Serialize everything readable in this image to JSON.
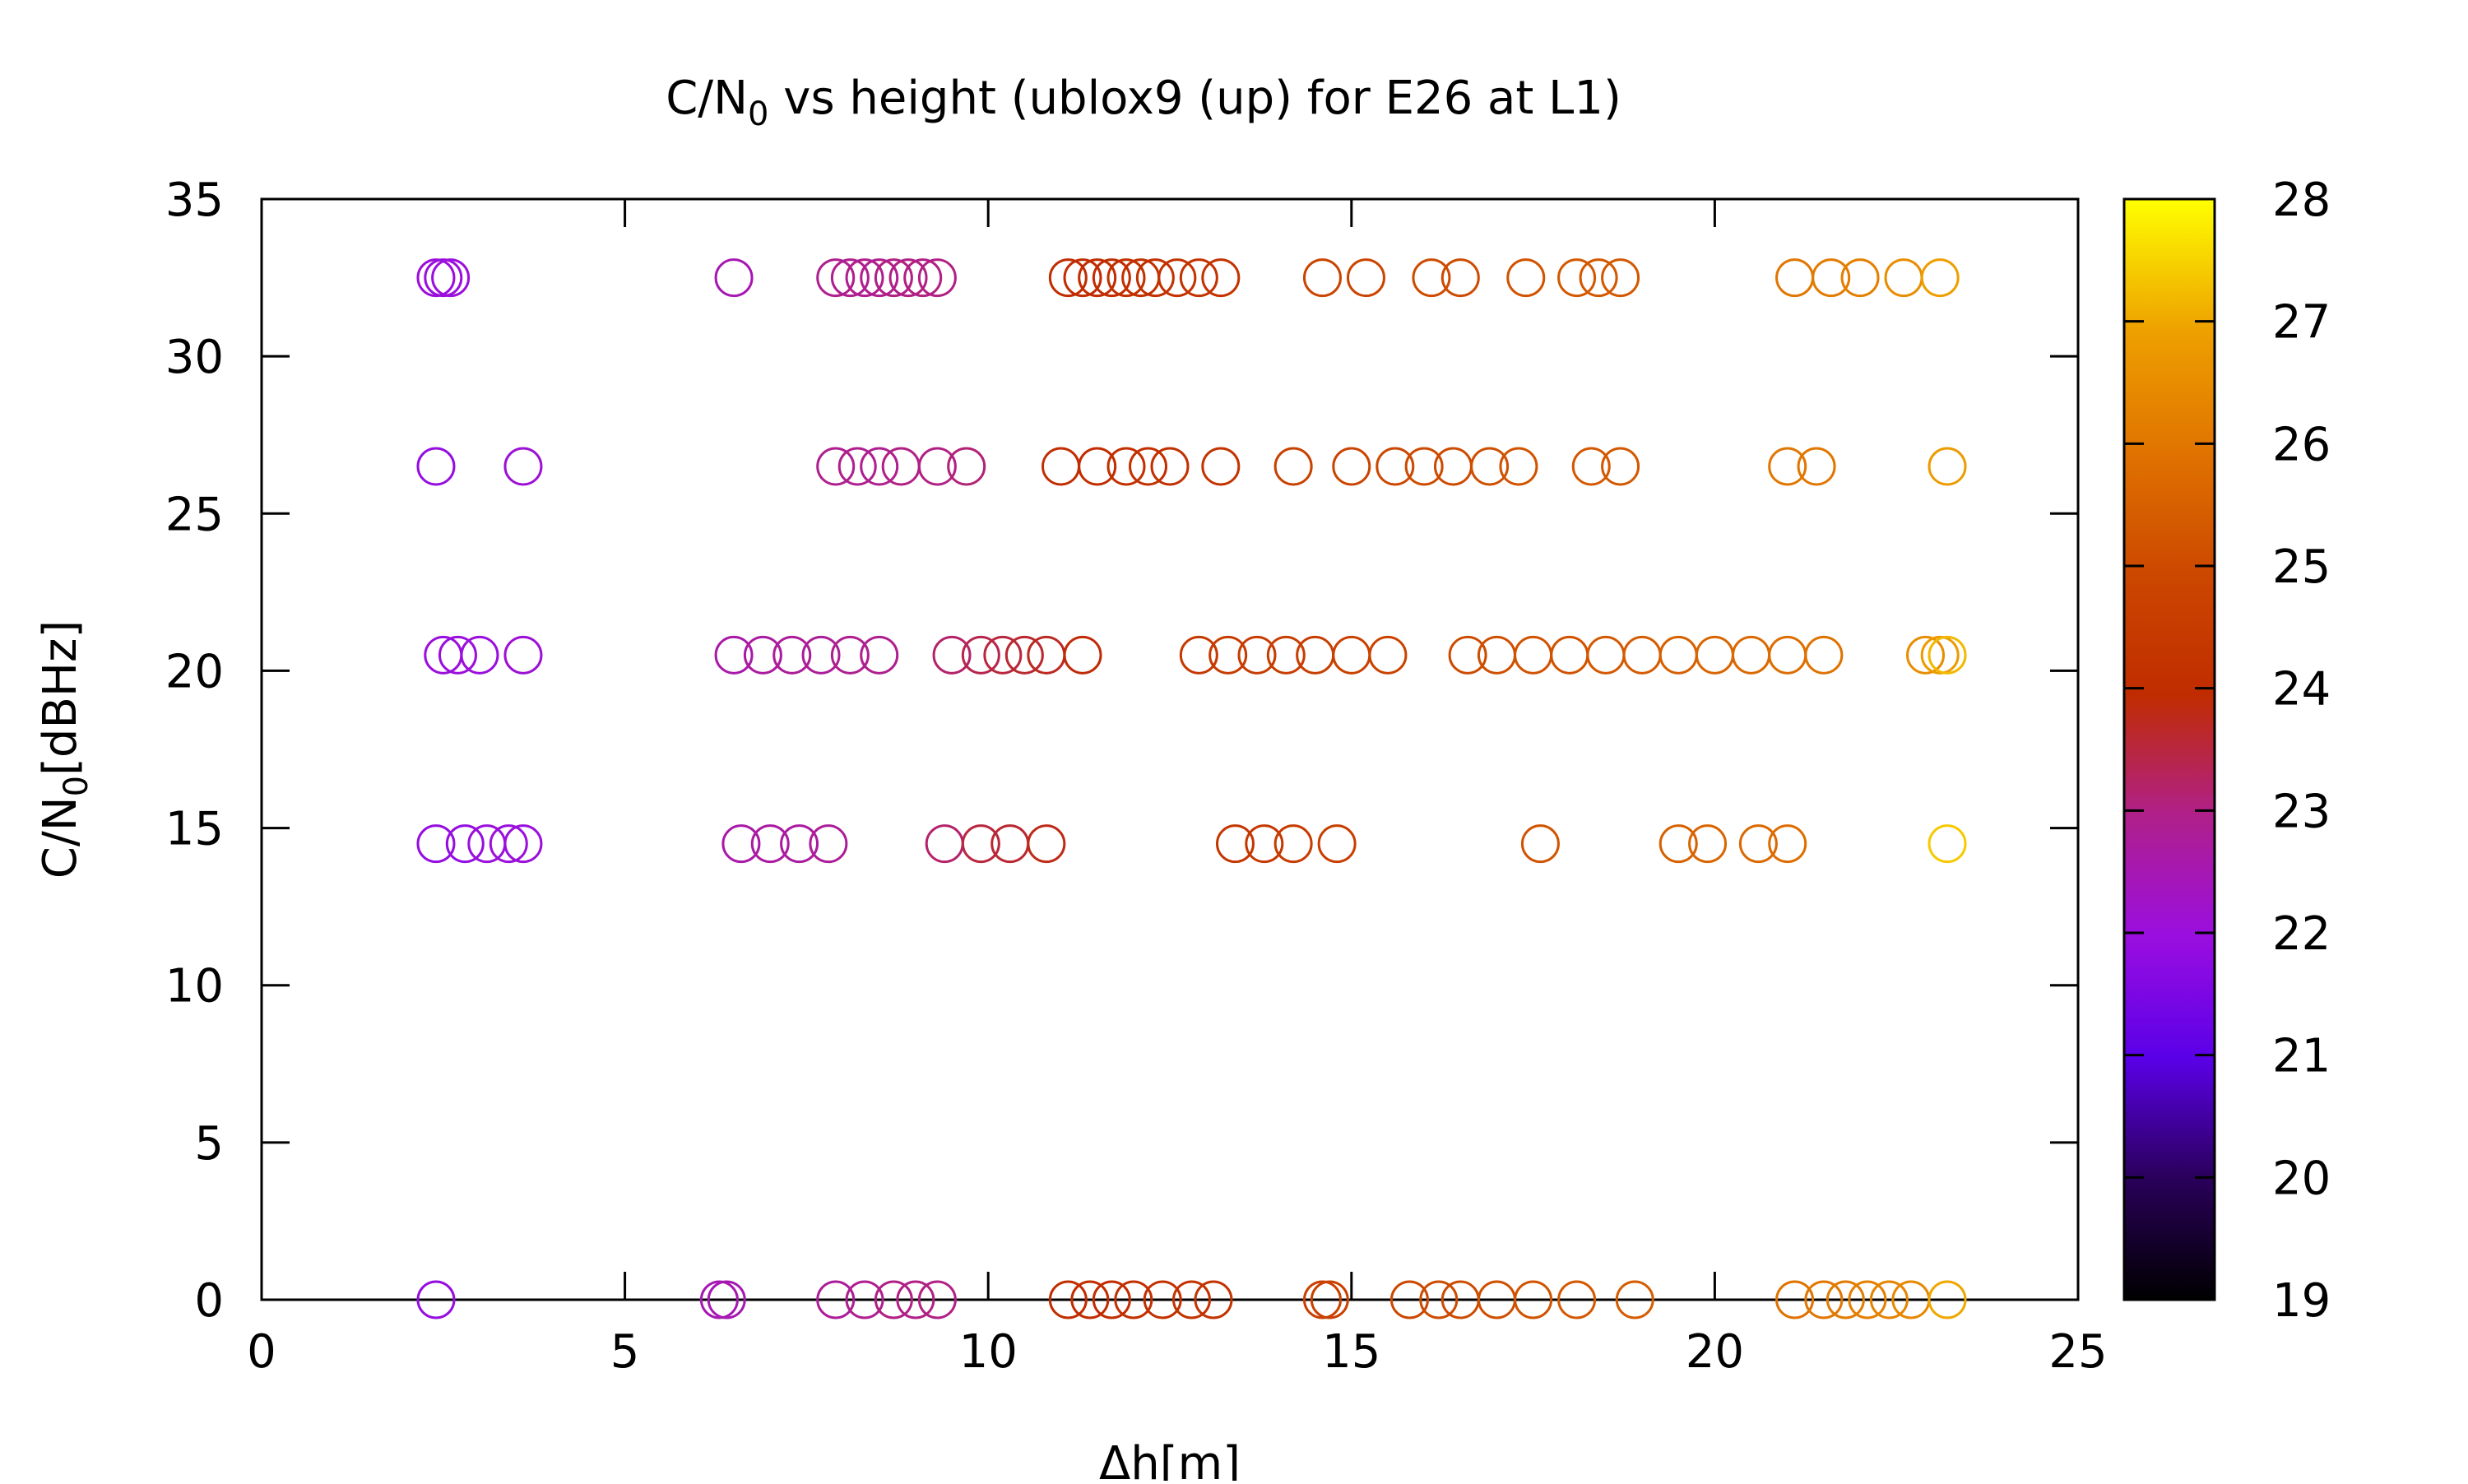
{
  "chart_data": {
    "type": "scatter",
    "title_main": "C/N",
    "title_sub": "0",
    "title_rest": " vs height (ublox9 (up) for E26 at L1)",
    "xlabel": "Δh[m]",
    "ylabel_main": "C/N",
    "ylabel_sub": "0",
    "ylabel_rest": "[dBHz]",
    "xlim": [
      0,
      25
    ],
    "ylim": [
      0,
      35
    ],
    "xticks": [
      "0",
      "5",
      "10",
      "15",
      "20",
      "25"
    ],
    "yticks": [
      "0",
      "5",
      "10",
      "15",
      "20",
      "25",
      "30",
      "35"
    ],
    "colorbar": {
      "range": [
        19,
        28
      ],
      "ticks": [
        "19",
        "20",
        "21",
        "22",
        "23",
        "24",
        "25",
        "26",
        "27",
        "28"
      ]
    },
    "grid": false,
    "marker": "open-circle",
    "points": [
      {
        "x": 2.4,
        "y": 32.5,
        "c": 22.0
      },
      {
        "x": 2.5,
        "y": 32.5,
        "c": 22.0
      },
      {
        "x": 2.6,
        "y": 32.5,
        "c": 22.0
      },
      {
        "x": 6.5,
        "y": 32.5,
        "c": 22.5
      },
      {
        "x": 7.9,
        "y": 32.5,
        "c": 22.9
      },
      {
        "x": 8.1,
        "y": 32.5,
        "c": 22.9
      },
      {
        "x": 8.3,
        "y": 32.5,
        "c": 22.9
      },
      {
        "x": 8.5,
        "y": 32.5,
        "c": 22.9
      },
      {
        "x": 8.7,
        "y": 32.5,
        "c": 23.0
      },
      {
        "x": 8.9,
        "y": 32.5,
        "c": 23.0
      },
      {
        "x": 9.1,
        "y": 32.5,
        "c": 23.0
      },
      {
        "x": 9.3,
        "y": 32.5,
        "c": 23.0
      },
      {
        "x": 11.1,
        "y": 32.5,
        "c": 24.0
      },
      {
        "x": 11.3,
        "y": 32.5,
        "c": 24.0
      },
      {
        "x": 11.5,
        "y": 32.5,
        "c": 24.0
      },
      {
        "x": 11.7,
        "y": 32.5,
        "c": 24.0
      },
      {
        "x": 11.9,
        "y": 32.5,
        "c": 24.1
      },
      {
        "x": 12.1,
        "y": 32.5,
        "c": 24.1
      },
      {
        "x": 12.3,
        "y": 32.5,
        "c": 24.1
      },
      {
        "x": 12.6,
        "y": 32.5,
        "c": 24.2
      },
      {
        "x": 12.9,
        "y": 32.5,
        "c": 24.2
      },
      {
        "x": 13.2,
        "y": 32.5,
        "c": 24.2
      },
      {
        "x": 14.6,
        "y": 32.5,
        "c": 24.8
      },
      {
        "x": 15.2,
        "y": 32.5,
        "c": 24.8
      },
      {
        "x": 16.1,
        "y": 32.5,
        "c": 25.0
      },
      {
        "x": 16.5,
        "y": 32.5,
        "c": 25.0
      },
      {
        "x": 17.4,
        "y": 32.5,
        "c": 25.2
      },
      {
        "x": 18.1,
        "y": 32.5,
        "c": 25.3
      },
      {
        "x": 18.4,
        "y": 32.5,
        "c": 25.3
      },
      {
        "x": 18.7,
        "y": 32.5,
        "c": 25.3
      },
      {
        "x": 21.1,
        "y": 32.5,
        "c": 26.0
      },
      {
        "x": 21.6,
        "y": 32.5,
        "c": 26.1
      },
      {
        "x": 22.0,
        "y": 32.5,
        "c": 26.2
      },
      {
        "x": 22.6,
        "y": 32.5,
        "c": 26.5
      },
      {
        "x": 23.1,
        "y": 32.5,
        "c": 26.9
      },
      {
        "x": 2.4,
        "y": 26.5,
        "c": 21.9
      },
      {
        "x": 3.6,
        "y": 26.5,
        "c": 22.1
      },
      {
        "x": 7.9,
        "y": 26.5,
        "c": 22.9
      },
      {
        "x": 8.2,
        "y": 26.5,
        "c": 22.9
      },
      {
        "x": 8.5,
        "y": 26.5,
        "c": 22.9
      },
      {
        "x": 8.8,
        "y": 26.5,
        "c": 23.0
      },
      {
        "x": 9.3,
        "y": 26.5,
        "c": 23.0
      },
      {
        "x": 9.7,
        "y": 26.5,
        "c": 23.1
      },
      {
        "x": 11.0,
        "y": 26.5,
        "c": 24.0
      },
      {
        "x": 11.5,
        "y": 26.5,
        "c": 24.0
      },
      {
        "x": 11.9,
        "y": 26.5,
        "c": 24.1
      },
      {
        "x": 12.2,
        "y": 26.5,
        "c": 24.1
      },
      {
        "x": 12.5,
        "y": 26.5,
        "c": 24.1
      },
      {
        "x": 13.2,
        "y": 26.5,
        "c": 24.2
      },
      {
        "x": 14.2,
        "y": 26.5,
        "c": 24.7
      },
      {
        "x": 15.0,
        "y": 26.5,
        "c": 24.8
      },
      {
        "x": 15.6,
        "y": 26.5,
        "c": 24.9
      },
      {
        "x": 16.0,
        "y": 26.5,
        "c": 25.0
      },
      {
        "x": 16.4,
        "y": 26.5,
        "c": 25.0
      },
      {
        "x": 16.9,
        "y": 26.5,
        "c": 25.1
      },
      {
        "x": 17.3,
        "y": 26.5,
        "c": 25.2
      },
      {
        "x": 18.3,
        "y": 26.5,
        "c": 25.3
      },
      {
        "x": 18.7,
        "y": 26.5,
        "c": 25.3
      },
      {
        "x": 21.0,
        "y": 26.5,
        "c": 26.0
      },
      {
        "x": 21.4,
        "y": 26.5,
        "c": 26.0
      },
      {
        "x": 23.2,
        "y": 26.5,
        "c": 26.8
      },
      {
        "x": 2.5,
        "y": 20.5,
        "c": 22.0
      },
      {
        "x": 2.7,
        "y": 20.5,
        "c": 22.0
      },
      {
        "x": 3.0,
        "y": 20.5,
        "c": 22.0
      },
      {
        "x": 3.6,
        "y": 20.5,
        "c": 22.1
      },
      {
        "x": 6.5,
        "y": 20.5,
        "c": 22.6
      },
      {
        "x": 6.9,
        "y": 20.5,
        "c": 22.7
      },
      {
        "x": 7.3,
        "y": 20.5,
        "c": 22.8
      },
      {
        "x": 7.7,
        "y": 20.5,
        "c": 22.8
      },
      {
        "x": 8.1,
        "y": 20.5,
        "c": 22.9
      },
      {
        "x": 8.5,
        "y": 20.5,
        "c": 22.9
      },
      {
        "x": 9.5,
        "y": 20.5,
        "c": 23.2
      },
      {
        "x": 9.9,
        "y": 20.5,
        "c": 23.4
      },
      {
        "x": 10.2,
        "y": 20.5,
        "c": 23.5
      },
      {
        "x": 10.5,
        "y": 20.5,
        "c": 23.6
      },
      {
        "x": 10.8,
        "y": 20.5,
        "c": 23.7
      },
      {
        "x": 11.3,
        "y": 20.5,
        "c": 23.9
      },
      {
        "x": 12.9,
        "y": 20.5,
        "c": 24.4
      },
      {
        "x": 13.3,
        "y": 20.5,
        "c": 24.5
      },
      {
        "x": 13.7,
        "y": 20.5,
        "c": 24.5
      },
      {
        "x": 14.1,
        "y": 20.5,
        "c": 24.6
      },
      {
        "x": 14.5,
        "y": 20.5,
        "c": 24.6
      },
      {
        "x": 15.0,
        "y": 20.5,
        "c": 24.7
      },
      {
        "x": 15.5,
        "y": 20.5,
        "c": 24.8
      },
      {
        "x": 16.6,
        "y": 20.5,
        "c": 25.0
      },
      {
        "x": 17.0,
        "y": 20.5,
        "c": 25.1
      },
      {
        "x": 17.5,
        "y": 20.5,
        "c": 25.2
      },
      {
        "x": 18.0,
        "y": 20.5,
        "c": 25.2
      },
      {
        "x": 18.5,
        "y": 20.5,
        "c": 25.3
      },
      {
        "x": 19.0,
        "y": 20.5,
        "c": 25.4
      },
      {
        "x": 19.5,
        "y": 20.5,
        "c": 25.5
      },
      {
        "x": 20.0,
        "y": 20.5,
        "c": 25.6
      },
      {
        "x": 20.5,
        "y": 20.5,
        "c": 25.7
      },
      {
        "x": 21.0,
        "y": 20.5,
        "c": 25.8
      },
      {
        "x": 21.5,
        "y": 20.5,
        "c": 25.9
      },
      {
        "x": 22.9,
        "y": 20.5,
        "c": 26.5
      },
      {
        "x": 23.1,
        "y": 20.5,
        "c": 26.8
      },
      {
        "x": 23.2,
        "y": 20.5,
        "c": 27.2
      },
      {
        "x": 2.4,
        "y": 14.5,
        "c": 21.9
      },
      {
        "x": 2.8,
        "y": 14.5,
        "c": 21.9
      },
      {
        "x": 3.1,
        "y": 14.5,
        "c": 22.0
      },
      {
        "x": 3.4,
        "y": 14.5,
        "c": 22.0
      },
      {
        "x": 3.6,
        "y": 14.5,
        "c": 22.0
      },
      {
        "x": 6.6,
        "y": 14.5,
        "c": 22.6
      },
      {
        "x": 7.0,
        "y": 14.5,
        "c": 22.7
      },
      {
        "x": 7.4,
        "y": 14.5,
        "c": 22.7
      },
      {
        "x": 7.8,
        "y": 14.5,
        "c": 22.8
      },
      {
        "x": 9.4,
        "y": 14.5,
        "c": 23.2
      },
      {
        "x": 9.9,
        "y": 14.5,
        "c": 23.5
      },
      {
        "x": 10.3,
        "y": 14.5,
        "c": 23.6
      },
      {
        "x": 10.8,
        "y": 14.5,
        "c": 23.8
      },
      {
        "x": 13.4,
        "y": 14.5,
        "c": 24.3
      },
      {
        "x": 13.8,
        "y": 14.5,
        "c": 24.4
      },
      {
        "x": 14.2,
        "y": 14.5,
        "c": 24.5
      },
      {
        "x": 14.8,
        "y": 14.5,
        "c": 24.6
      },
      {
        "x": 17.6,
        "y": 14.5,
        "c": 25.2
      },
      {
        "x": 19.5,
        "y": 14.5,
        "c": 25.5
      },
      {
        "x": 19.9,
        "y": 14.5,
        "c": 25.6
      },
      {
        "x": 20.6,
        "y": 14.5,
        "c": 25.7
      },
      {
        "x": 21.0,
        "y": 14.5,
        "c": 25.8
      },
      {
        "x": 23.2,
        "y": 14.5,
        "c": 27.4
      },
      {
        "x": 2.4,
        "y": 0,
        "c": 21.9
      },
      {
        "x": 6.3,
        "y": 0,
        "c": 22.5
      },
      {
        "x": 6.4,
        "y": 0,
        "c": 22.5
      },
      {
        "x": 7.9,
        "y": 0,
        "c": 22.8
      },
      {
        "x": 8.3,
        "y": 0,
        "c": 22.9
      },
      {
        "x": 8.7,
        "y": 0,
        "c": 23.0
      },
      {
        "x": 9.0,
        "y": 0,
        "c": 23.0
      },
      {
        "x": 9.3,
        "y": 0,
        "c": 23.0
      },
      {
        "x": 11.1,
        "y": 0,
        "c": 24.0
      },
      {
        "x": 11.4,
        "y": 0,
        "c": 24.0
      },
      {
        "x": 11.7,
        "y": 0,
        "c": 24.0
      },
      {
        "x": 12.0,
        "y": 0,
        "c": 24.1
      },
      {
        "x": 12.4,
        "y": 0,
        "c": 24.1
      },
      {
        "x": 12.8,
        "y": 0,
        "c": 24.2
      },
      {
        "x": 13.1,
        "y": 0,
        "c": 24.2
      },
      {
        "x": 14.6,
        "y": 0,
        "c": 24.7
      },
      {
        "x": 14.7,
        "y": 0,
        "c": 24.7
      },
      {
        "x": 15.8,
        "y": 0,
        "c": 24.9
      },
      {
        "x": 16.2,
        "y": 0,
        "c": 25.0
      },
      {
        "x": 16.5,
        "y": 0,
        "c": 25.0
      },
      {
        "x": 17.0,
        "y": 0,
        "c": 25.1
      },
      {
        "x": 17.5,
        "y": 0,
        "c": 25.2
      },
      {
        "x": 18.1,
        "y": 0,
        "c": 25.3
      },
      {
        "x": 18.9,
        "y": 0,
        "c": 25.4
      },
      {
        "x": 21.1,
        "y": 0,
        "c": 25.9
      },
      {
        "x": 21.5,
        "y": 0,
        "c": 26.0
      },
      {
        "x": 21.8,
        "y": 0,
        "c": 26.1
      },
      {
        "x": 22.1,
        "y": 0,
        "c": 26.2
      },
      {
        "x": 22.4,
        "y": 0,
        "c": 26.3
      },
      {
        "x": 22.7,
        "y": 0,
        "c": 26.4
      },
      {
        "x": 23.2,
        "y": 0,
        "c": 27.0
      }
    ]
  }
}
